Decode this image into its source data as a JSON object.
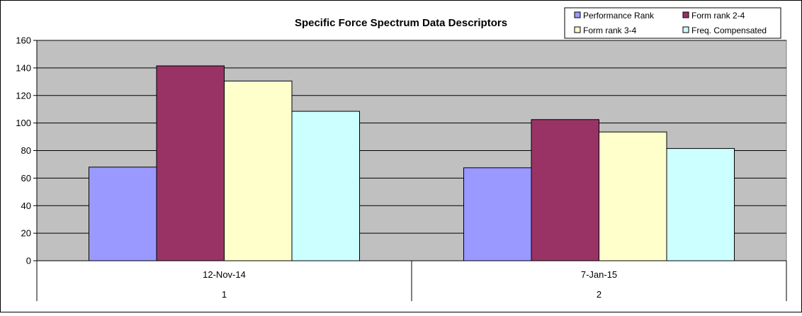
{
  "chart_data": {
    "type": "bar",
    "title": "Specific Force Spectrum Data Descriptors",
    "categories": [
      {
        "label": "12-Nov-14",
        "sublabel": "1"
      },
      {
        "label": "7-Jan-15",
        "sublabel": "2"
      }
    ],
    "series": [
      {
        "name": "Performance Rank",
        "color": "#9999ff",
        "values": [
          68,
          67.5
        ]
      },
      {
        "name": "Form rank 2-4",
        "color": "#993366",
        "values": [
          141.5,
          102.5
        ]
      },
      {
        "name": "Form rank 3-4",
        "color": "#ffffcc",
        "values": [
          130.5,
          93.5
        ]
      },
      {
        "name": "Freq. Compensated",
        "color": "#ccffff",
        "values": [
          108.5,
          81.5
        ]
      }
    ],
    "ylim": [
      0,
      160
    ],
    "yticks": [
      0,
      20,
      40,
      60,
      80,
      100,
      120,
      140,
      160
    ],
    "grid": true,
    "legend_position": "top-right",
    "plot_background": "#c0c0c0"
  }
}
